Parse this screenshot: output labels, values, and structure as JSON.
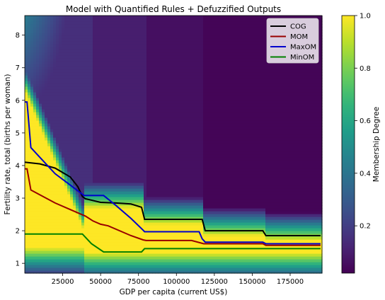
{
  "chart_data": {
    "type": "heatmap",
    "title": "Model with Quantified Rules + Defuzzified Outputs",
    "xlabel": "GDP per capita (current US$)",
    "ylabel": "Fertility rate, total (births per woman)",
    "colorbar_label": "Membership Degree",
    "colormap": "viridis",
    "xlim": [
      0,
      196000
    ],
    "ylim": [
      0.7,
      8.6
    ],
    "clim": [
      0.02,
      1.0
    ],
    "x_ticks": [
      25000,
      50000,
      75000,
      100000,
      125000,
      150000,
      175000
    ],
    "x_tick_labels": [
      "25000",
      "50000",
      "75000",
      "100000",
      "125000",
      "150000",
      "175000"
    ],
    "y_ticks": [
      1,
      2,
      3,
      4,
      5,
      6,
      7,
      8
    ],
    "y_tick_labels": [
      "1",
      "2",
      "3",
      "4",
      "5",
      "6",
      "7",
      "8"
    ],
    "colorbar_ticks": [
      0.2,
      0.4,
      0.6,
      0.8,
      1.0
    ],
    "colorbar_tick_labels": [
      "0.2",
      "0.4",
      "0.6",
      "0.8",
      "1.0"
    ],
    "legend_position": "top-right",
    "series": [
      {
        "name": "COG",
        "color": "#000000",
        "x": [
          0,
          10000,
          20000,
          30000,
          35000,
          38000,
          40000,
          50000,
          60000,
          70000,
          77000,
          79000,
          100000,
          117000,
          119000,
          140000,
          157000,
          159000,
          195000
        ],
        "y": [
          4.1,
          4.05,
          3.92,
          3.65,
          3.35,
          3.05,
          2.98,
          2.87,
          2.85,
          2.82,
          2.72,
          2.35,
          2.35,
          2.35,
          2.0,
          2.0,
          2.0,
          1.85,
          1.85
        ]
      },
      {
        "name": "MOM",
        "color": "#990000",
        "x": [
          0,
          1500,
          4000,
          10000,
          20000,
          30000,
          40000,
          45000,
          50000,
          55000,
          70000,
          78000,
          80000,
          110000,
          118000,
          120000,
          157000,
          159000,
          195000
        ],
        "y": [
          3.9,
          3.9,
          3.25,
          3.1,
          2.85,
          2.65,
          2.45,
          2.3,
          2.2,
          2.15,
          1.85,
          1.72,
          1.7,
          1.7,
          1.6,
          1.6,
          1.6,
          1.55,
          1.55
        ]
      },
      {
        "name": "MaxOM",
        "color": "#0000cc",
        "x": [
          0,
          1500,
          4000,
          10000,
          20000,
          30000,
          39000,
          52000,
          60000,
          70000,
          78000,
          79000,
          115000,
          117000,
          119000,
          157000,
          159000,
          195000
        ],
        "y": [
          5.95,
          5.95,
          4.55,
          4.25,
          3.75,
          3.4,
          3.08,
          3.08,
          2.78,
          2.38,
          2.02,
          1.97,
          1.97,
          1.75,
          1.65,
          1.65,
          1.6,
          1.6
        ]
      },
      {
        "name": "MinOM",
        "color": "#008000",
        "x": [
          0,
          38000,
          40000,
          44000,
          52000,
          55000,
          77000,
          79000,
          157000,
          159000,
          195000
        ],
        "y": [
          1.9,
          1.9,
          1.8,
          1.6,
          1.35,
          1.35,
          1.35,
          1.45,
          1.45,
          1.45,
          1.45
        ]
      }
    ]
  }
}
